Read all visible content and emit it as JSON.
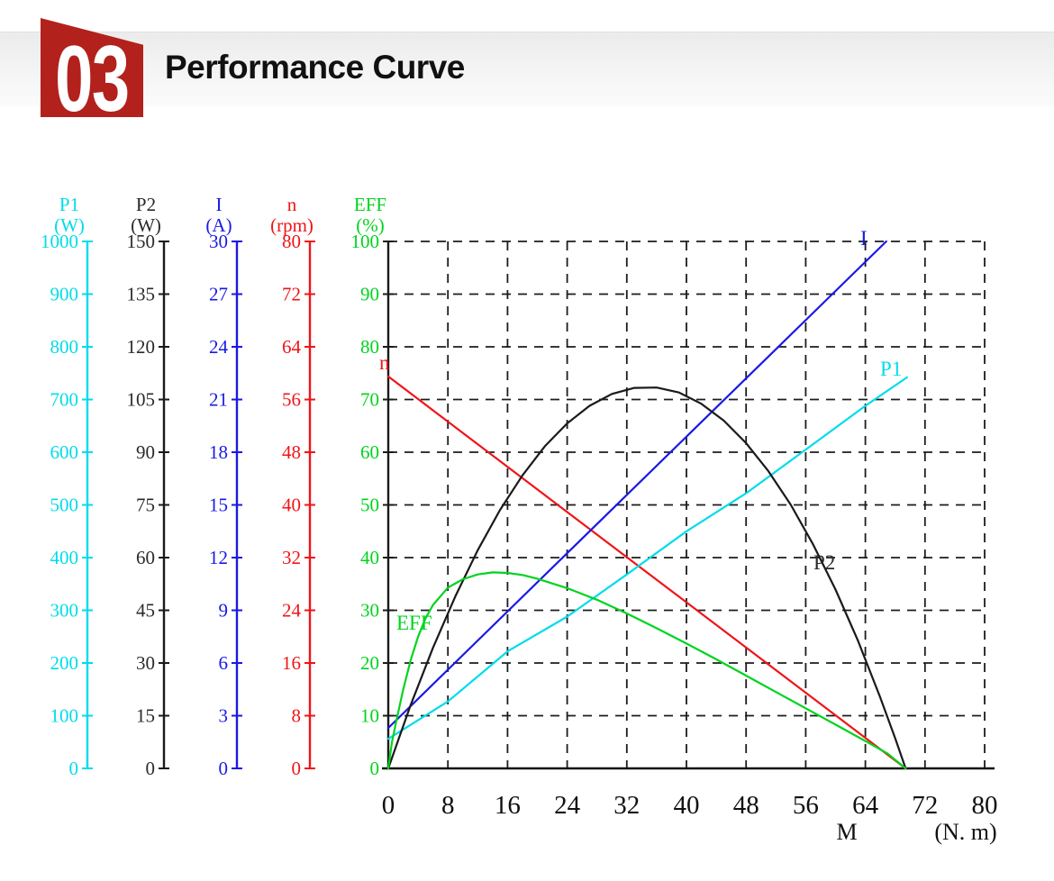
{
  "header": {
    "number": "03",
    "title": "Performance Curve"
  },
  "colors": {
    "badge": "#b3211c",
    "title": "#111111",
    "grid": "#1c1c1c"
  },
  "chart_data": {
    "type": "line",
    "title": "Performance Curve",
    "x_axis": {
      "label": "M",
      "unit": "(N. m)",
      "range": [
        0,
        80
      ],
      "ticks": [
        0,
        8,
        16,
        24,
        32,
        40,
        48,
        56,
        64,
        72,
        80
      ]
    },
    "grid": {
      "style": "dashed",
      "x_divisions": 10,
      "y_divisions": 10
    },
    "axes": [
      {
        "id": "P1",
        "name": "P1",
        "unit": "(W)",
        "min": 0,
        "max": 1000,
        "ticks": [
          0,
          100,
          200,
          300,
          400,
          500,
          600,
          700,
          800,
          900,
          1000
        ],
        "color": "#00dcea",
        "label_color": "#00dcea"
      },
      {
        "id": "P2",
        "name": "P2",
        "unit": "(W)",
        "min": 0,
        "max": 150,
        "ticks": [
          0,
          15,
          30,
          45,
          60,
          75,
          90,
          105,
          120,
          135,
          150
        ],
        "color": "#1a1a1a",
        "label_color": "#2a2a2a"
      },
      {
        "id": "I",
        "name": "I",
        "unit": "(A)",
        "min": 0,
        "max": 30,
        "ticks": [
          0,
          3,
          6,
          9,
          12,
          15,
          18,
          21,
          24,
          27,
          30
        ],
        "color": "#1919e6",
        "label_color": "#1919e6"
      },
      {
        "id": "n",
        "name": "n",
        "unit": "(rpm)",
        "min": 0,
        "max": 80,
        "ticks": [
          0,
          8,
          16,
          24,
          32,
          40,
          48,
          56,
          64,
          72,
          80
        ],
        "color": "#f01418",
        "label_color": "#f01418"
      },
      {
        "id": "EFF",
        "name": "EFF",
        "unit": "(%)",
        "min": 0,
        "max": 100,
        "ticks": [
          0,
          10,
          20,
          30,
          40,
          50,
          60,
          70,
          80,
          90,
          100
        ],
        "color": "#1a1a1a",
        "label_color": "#00d41e"
      }
    ],
    "series": [
      {
        "name": "n",
        "axis": "n",
        "color": "#f01418",
        "points": [
          [
            0,
            59.5
          ],
          [
            69.4,
            0
          ]
        ]
      },
      {
        "name": "I",
        "axis": "I",
        "color": "#1919e6",
        "points": [
          [
            0,
            2.3
          ],
          [
            66.8,
            30
          ]
        ]
      },
      {
        "name": "P1",
        "axis": "P1",
        "color": "#00dcea",
        "points": [
          [
            0,
            56
          ],
          [
            8,
            127
          ],
          [
            16,
            222
          ],
          [
            24,
            288
          ],
          [
            32,
            368
          ],
          [
            40,
            450
          ],
          [
            48,
            522
          ],
          [
            56,
            605
          ],
          [
            64,
            688
          ],
          [
            69.6,
            742
          ]
        ]
      },
      {
        "name": "P2",
        "axis": "P2",
        "color": "#1a1a1a",
        "points": [
          [
            0,
            0
          ],
          [
            3,
            18
          ],
          [
            6,
            34.3
          ],
          [
            9,
            49
          ],
          [
            12,
            62.1
          ],
          [
            15,
            73.6
          ],
          [
            18,
            83.4
          ],
          [
            21,
            91.7
          ],
          [
            24,
            98.2
          ],
          [
            27,
            103.2
          ],
          [
            30,
            106.6
          ],
          [
            33,
            108.3
          ],
          [
            36,
            108.4
          ],
          [
            39,
            107
          ],
          [
            42,
            103.8
          ],
          [
            45,
            99
          ],
          [
            48,
            92.6
          ],
          [
            51,
            84.6
          ],
          [
            54,
            75
          ],
          [
            57,
            63.7
          ],
          [
            60,
            50.9
          ],
          [
            63,
            36.4
          ],
          [
            66,
            20.2
          ],
          [
            68,
            8.6
          ],
          [
            69.4,
            0
          ]
        ]
      },
      {
        "name": "EFF",
        "axis": "EFF",
        "color": "#00d41e",
        "points": [
          [
            0,
            0
          ],
          [
            0.5,
            5
          ],
          [
            1,
            8.5
          ],
          [
            2,
            15
          ],
          [
            3,
            20.5
          ],
          [
            4,
            25
          ],
          [
            5,
            28.5
          ],
          [
            6,
            31
          ],
          [
            8,
            34.3
          ],
          [
            10,
            35.9
          ],
          [
            12,
            36.8
          ],
          [
            14,
            37.2
          ],
          [
            16,
            37.1
          ],
          [
            18,
            36.7
          ],
          [
            20,
            36
          ],
          [
            24,
            34.2
          ],
          [
            28,
            32
          ],
          [
            32,
            29.4
          ],
          [
            36,
            26.6
          ],
          [
            40,
            23.7
          ],
          [
            44,
            20.7
          ],
          [
            48,
            17.6
          ],
          [
            52,
            14.5
          ],
          [
            56,
            11.4
          ],
          [
            60,
            8.3
          ],
          [
            64,
            5.2
          ],
          [
            67,
            2.8
          ],
          [
            69.4,
            0
          ]
        ]
      }
    ],
    "curve_labels": [
      {
        "text": "n",
        "color": "#f01418"
      },
      {
        "text": "I",
        "color": "#1919e6"
      },
      {
        "text": "P1",
        "color": "#00dcea"
      },
      {
        "text": "P2",
        "color": "#2a2a2a"
      },
      {
        "text": "EFF",
        "color": "#00d41e"
      }
    ]
  }
}
